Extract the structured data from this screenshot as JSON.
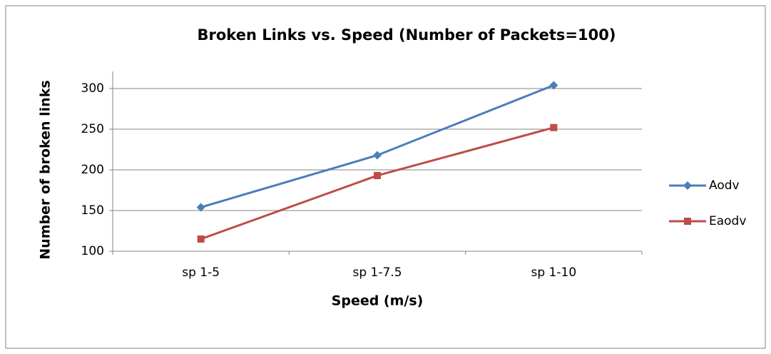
{
  "chart_data": {
    "type": "line",
    "title": "Broken Links vs. Speed (Number of Packets=100)",
    "x_label": "Speed (m/s)",
    "y_label": "Number of broken links",
    "categories": [
      "sp 1-5",
      "sp 1-7.5",
      "sp 1-10"
    ],
    "series": [
      {
        "name": "Aodv",
        "color": "#4a7ebb",
        "marker": "diamond",
        "values": [
          154,
          218,
          304
        ]
      },
      {
        "name": "Eaodv",
        "color": "#be4b48",
        "marker": "square",
        "values": [
          115,
          193,
          252
        ]
      }
    ],
    "ylim": [
      100,
      300
    ],
    "yticks": [
      100,
      150,
      200,
      250,
      300
    ],
    "grid": true,
    "legend": "right"
  }
}
